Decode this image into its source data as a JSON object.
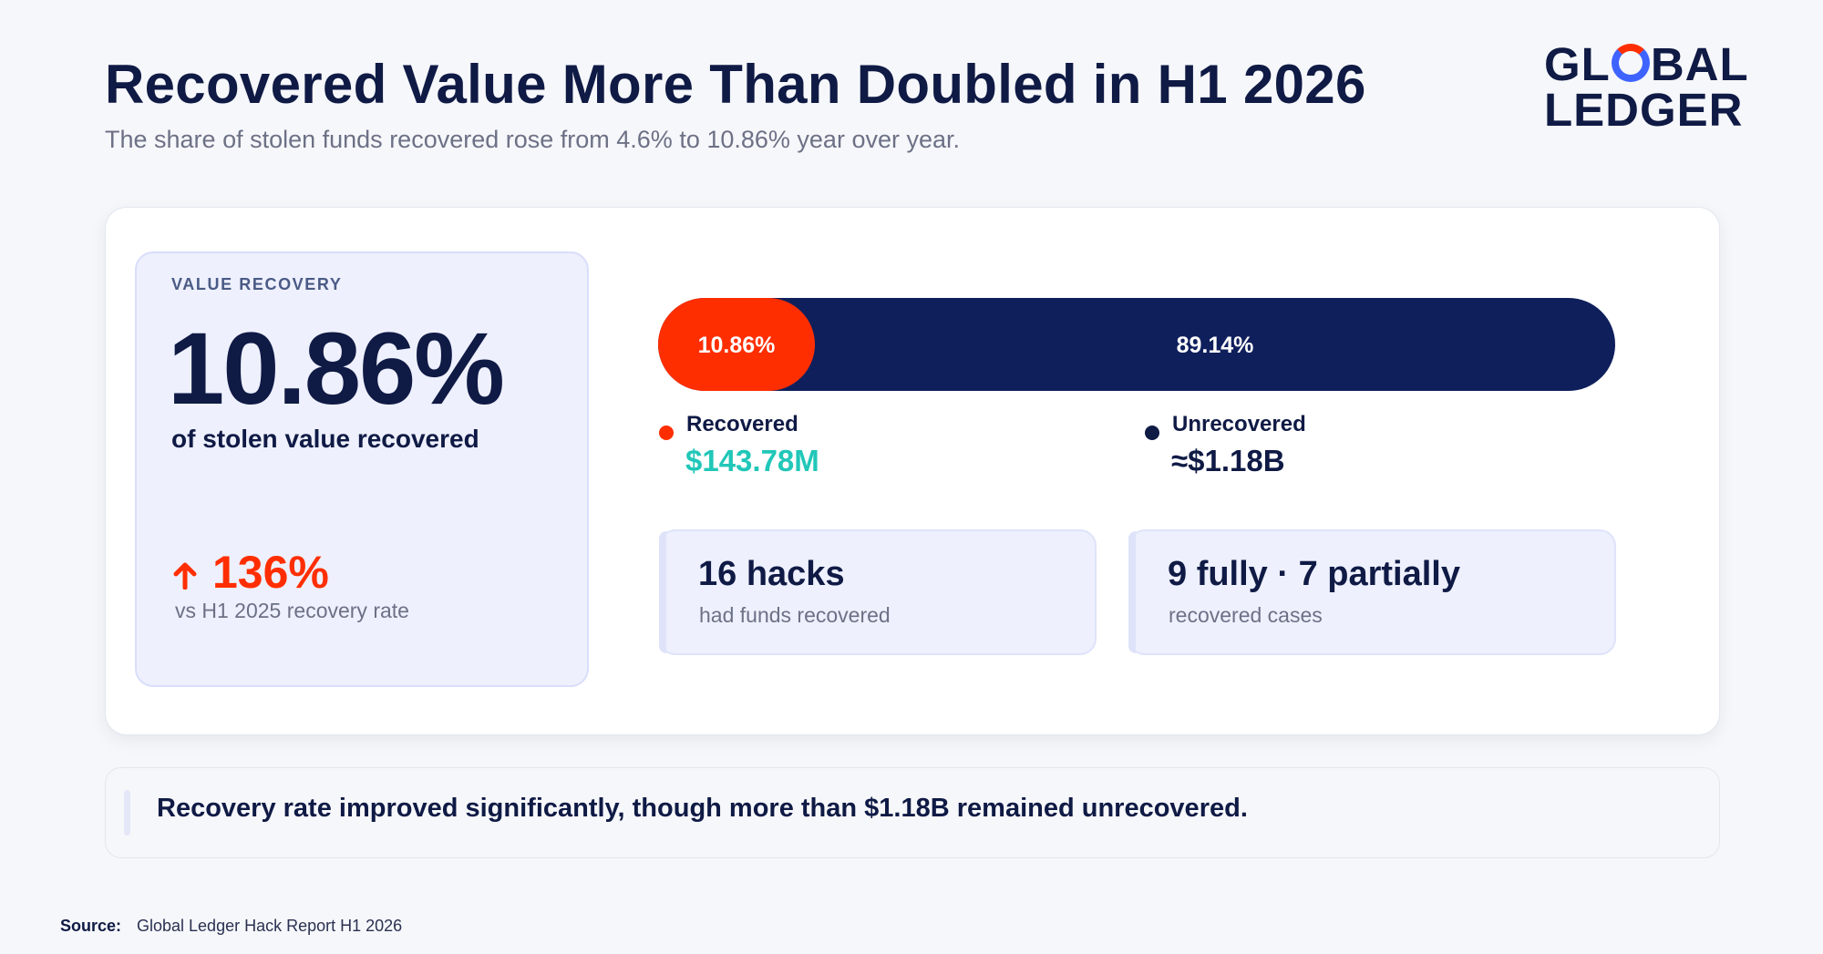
{
  "header": {
    "title": "Recovered Value More Than Doubled in H1 2026",
    "subtitle": "The share of stolen funds recovered rose from 4.6% to 10.86% year over year."
  },
  "logo": {
    "line1_a": "GL",
    "line1_b": "BAL",
    "line2": "LEDGER"
  },
  "kpi": {
    "label": "VALUE RECOVERY",
    "value": "10.86%",
    "description": "of stolen value recovered",
    "change": "136%",
    "change_label": "vs H1 2025 recovery rate"
  },
  "chart_data": {
    "type": "bar",
    "orientation": "horizontal-stacked",
    "series": [
      {
        "name": "Recovered",
        "value": 10.86,
        "label": "10.86%",
        "amount": "$143.78M",
        "color": "#ff2e00"
      },
      {
        "name": "Unrecovered",
        "value": 89.14,
        "label": "89.14%",
        "amount": "≈$1.18B",
        "color": "#0f1f5c"
      }
    ],
    "xlim": [
      0,
      100
    ]
  },
  "legend": {
    "recovered_label": "Recovered",
    "recovered_value": "$143.78M",
    "unrecovered_label": "Unrecovered",
    "unrecovered_value": "≈$1.18B"
  },
  "stats": [
    {
      "title": "16 hacks",
      "subtitle": "had funds recovered"
    },
    {
      "title": "9 fully · 7 partially",
      "subtitle": "recovered cases"
    }
  ],
  "note": "Recovery rate improved significantly, though more than $1.18B remained unrecovered.",
  "source": {
    "label": "Source:",
    "text": "Global Ledger Hack Report H1 2026"
  },
  "colors": {
    "navy": "#0f1a45",
    "bar_navy": "#0f1f5c",
    "accent_red": "#ff2e00",
    "accent_teal": "#21c7b8",
    "panel": "#eef0fd"
  }
}
